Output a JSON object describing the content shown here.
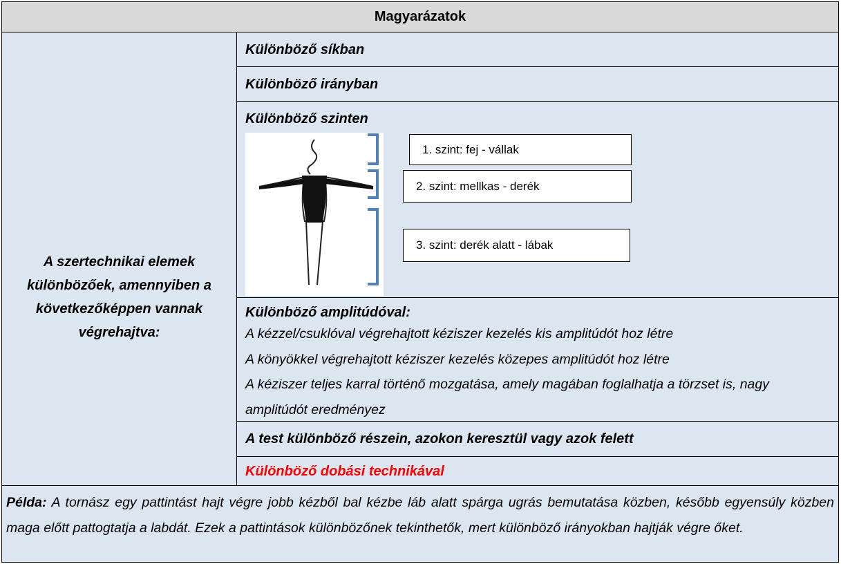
{
  "header": {
    "title": "Magyarázatok"
  },
  "left_cell": {
    "text": "A szertechnikai elemek különbözőek, amennyiben a következőképpen vannak végrehajtva:"
  },
  "rows": [
    "Különböző síkban",
    "Különböző irányban",
    "Különböző szinten"
  ],
  "levels": [
    "1. szint: fej - vállak",
    "2. szint: mellkas - derék",
    "3. szint: derék alatt - lábak"
  ],
  "amplitude": {
    "title": "Különböző amplitúdóval:",
    "lines": [
      "A kézzel/csuklóval végrehajtott kéziszer kezelés kis amplitúdót hoz létre",
      "A könyökkel végrehajtott kéziszer kezelés közepes amplitúdót hoz létre",
      "A kéziszer teljes karral történő mozgatása, amely magában foglalhatja a törzset is, nagy amplitúdót eredményez"
    ]
  },
  "body_parts": "A test különböző részein, azokon keresztül vagy azok felett",
  "throw": "Különböző dobási technikával",
  "example": {
    "label": "Példa:",
    "text": "A tornász egy pattintást hajt végre jobb kézből bal kézbe láb alatt spárga ugrás bemutatása közben, később egyensúly közben maga előtt pattogtatja a labdát. Ezek a pattintások különbözőnek tekinthetők, mert különböző irányokban hajtják végre őket."
  }
}
